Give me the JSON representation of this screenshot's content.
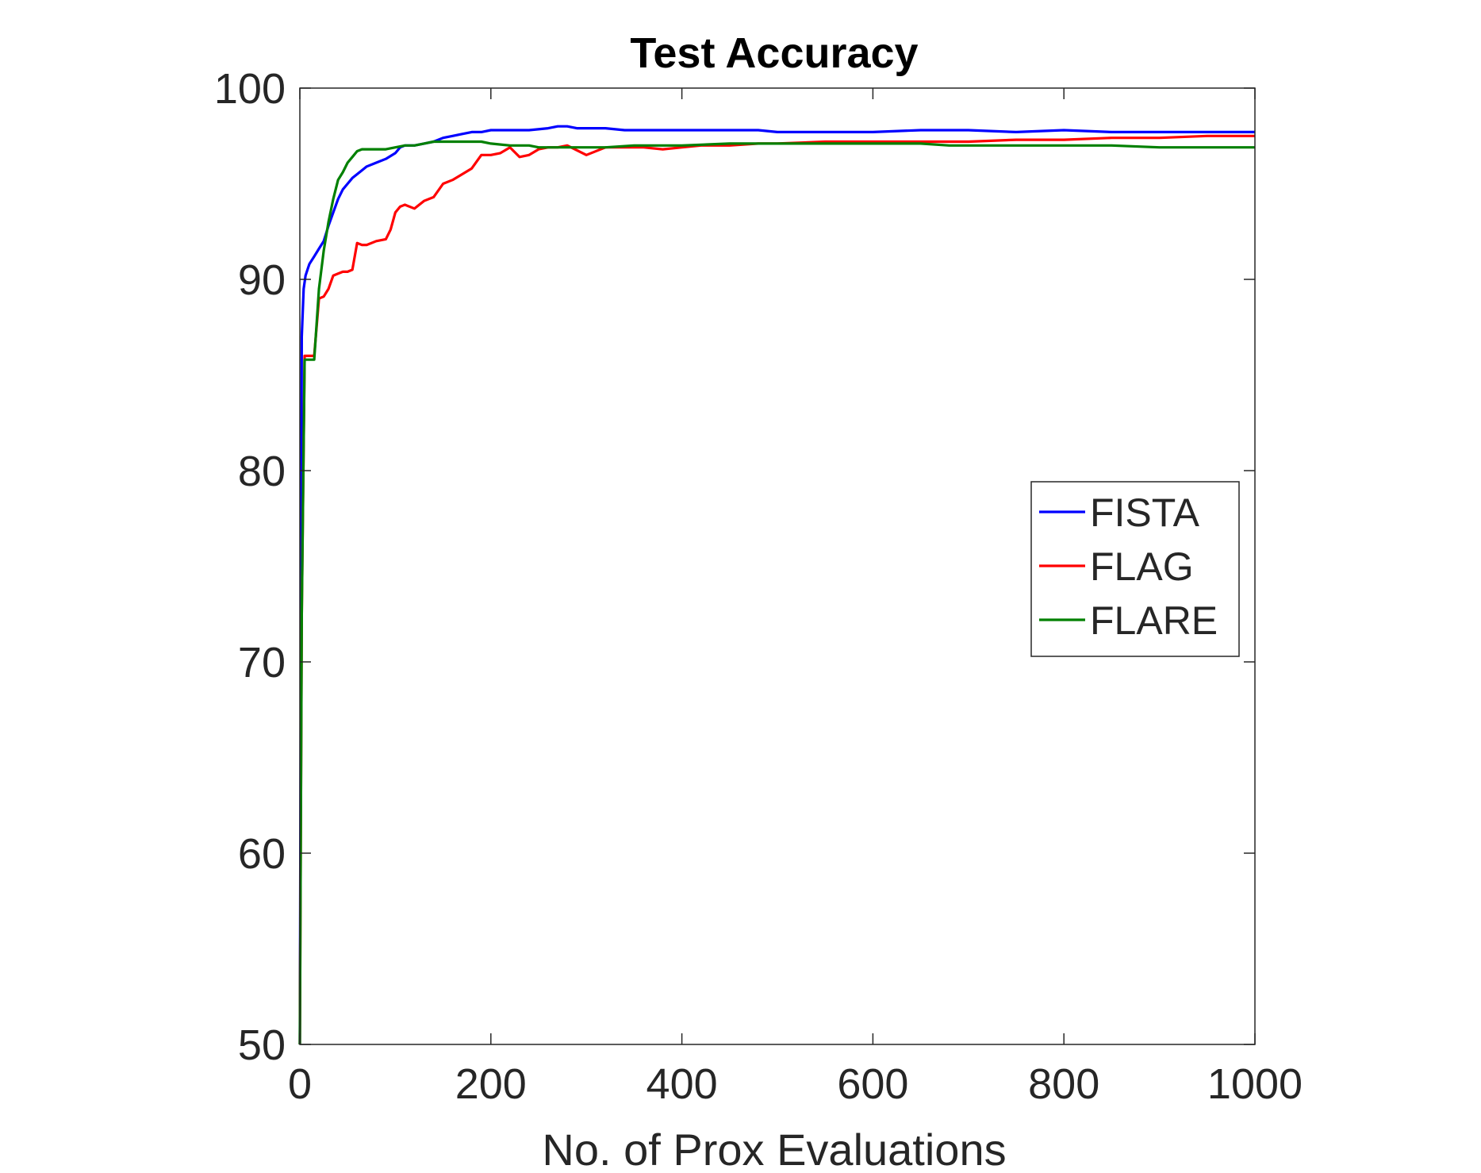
{
  "chart_data": {
    "type": "line",
    "title": "Test Accuracy",
    "xlabel": "No. of Prox Evaluations",
    "ylabel": "",
    "xlim": [
      0,
      1000
    ],
    "ylim": [
      50,
      100
    ],
    "xticks": [
      0,
      200,
      400,
      600,
      800,
      1000
    ],
    "yticks": [
      50,
      60,
      70,
      80,
      90,
      100
    ],
    "grid": false,
    "legend_position": "right",
    "series": [
      {
        "name": "FISTA",
        "color": "#0000ff",
        "x": [
          0,
          2,
          4,
          6,
          8,
          10,
          15,
          20,
          25,
          30,
          35,
          40,
          45,
          50,
          55,
          60,
          65,
          70,
          80,
          90,
          100,
          105,
          110,
          120,
          130,
          140,
          150,
          160,
          170,
          180,
          190,
          200,
          220,
          240,
          260,
          270,
          280,
          290,
          300,
          320,
          340,
          360,
          380,
          400,
          450,
          480,
          500,
          550,
          600,
          650,
          700,
          750,
          800,
          850,
          900,
          950,
          1000
        ],
        "y": [
          50,
          87,
          89.5,
          90.2,
          90.5,
          90.8,
          91.2,
          91.6,
          92,
          92.8,
          93.5,
          94.2,
          94.7,
          95,
          95.3,
          95.5,
          95.7,
          95.9,
          96.1,
          96.3,
          96.6,
          96.9,
          97,
          97,
          97.1,
          97.2,
          97.4,
          97.5,
          97.6,
          97.7,
          97.7,
          97.8,
          97.8,
          97.8,
          97.9,
          98,
          98,
          97.9,
          97.9,
          97.9,
          97.8,
          97.8,
          97.8,
          97.8,
          97.8,
          97.8,
          97.7,
          97.7,
          97.7,
          97.8,
          97.8,
          97.7,
          97.8,
          97.7,
          97.7,
          97.7,
          97.7
        ]
      },
      {
        "name": "FLAG",
        "color": "#ff0000",
        "x": [
          0,
          2,
          5,
          8,
          10,
          15,
          20,
          25,
          30,
          35,
          40,
          45,
          50,
          55,
          60,
          65,
          70,
          80,
          90,
          95,
          100,
          105,
          110,
          120,
          130,
          140,
          150,
          160,
          170,
          180,
          190,
          200,
          210,
          220,
          230,
          240,
          250,
          260,
          270,
          280,
          300,
          320,
          340,
          360,
          380,
          400,
          420,
          450,
          480,
          500,
          550,
          600,
          650,
          700,
          750,
          800,
          850,
          900,
          950,
          1000
        ],
        "y": [
          50,
          72.5,
          86,
          86,
          86,
          86,
          89,
          89.1,
          89.5,
          90.2,
          90.3,
          90.4,
          90.4,
          90.5,
          91.9,
          91.8,
          91.8,
          92,
          92.1,
          92.6,
          93.5,
          93.8,
          93.9,
          93.7,
          94.1,
          94.3,
          95,
          95.2,
          95.5,
          95.8,
          96.5,
          96.5,
          96.6,
          96.9,
          96.4,
          96.5,
          96.8,
          96.9,
          96.9,
          97,
          96.5,
          96.9,
          96.9,
          96.9,
          96.8,
          96.9,
          97,
          97,
          97.1,
          97.1,
          97.2,
          97.2,
          97.2,
          97.2,
          97.3,
          97.3,
          97.4,
          97.4,
          97.5,
          97.5
        ]
      },
      {
        "name": "FLARE",
        "color": "#008000",
        "x": [
          0,
          2,
          5,
          8,
          10,
          15,
          20,
          25,
          30,
          35,
          40,
          45,
          50,
          55,
          60,
          65,
          70,
          80,
          90,
          100,
          110,
          120,
          130,
          140,
          150,
          160,
          170,
          180,
          190,
          200,
          220,
          240,
          250,
          260,
          280,
          300,
          320,
          350,
          400,
          450,
          500,
          550,
          600,
          650,
          680,
          700,
          750,
          800,
          850,
          900,
          950,
          1000
        ],
        "y": [
          50,
          72.5,
          85.8,
          85.8,
          85.8,
          85.8,
          89.5,
          91.5,
          93,
          94.2,
          95.2,
          95.6,
          96.1,
          96.4,
          96.7,
          96.8,
          96.8,
          96.8,
          96.8,
          96.9,
          97,
          97,
          97.1,
          97.2,
          97.2,
          97.2,
          97.2,
          97.2,
          97.2,
          97.1,
          97,
          97,
          96.9,
          96.9,
          96.9,
          96.9,
          96.9,
          97,
          97,
          97.1,
          97.1,
          97.1,
          97.1,
          97.1,
          97,
          97,
          97,
          97,
          97,
          96.9,
          96.9,
          96.9
        ]
      }
    ]
  }
}
